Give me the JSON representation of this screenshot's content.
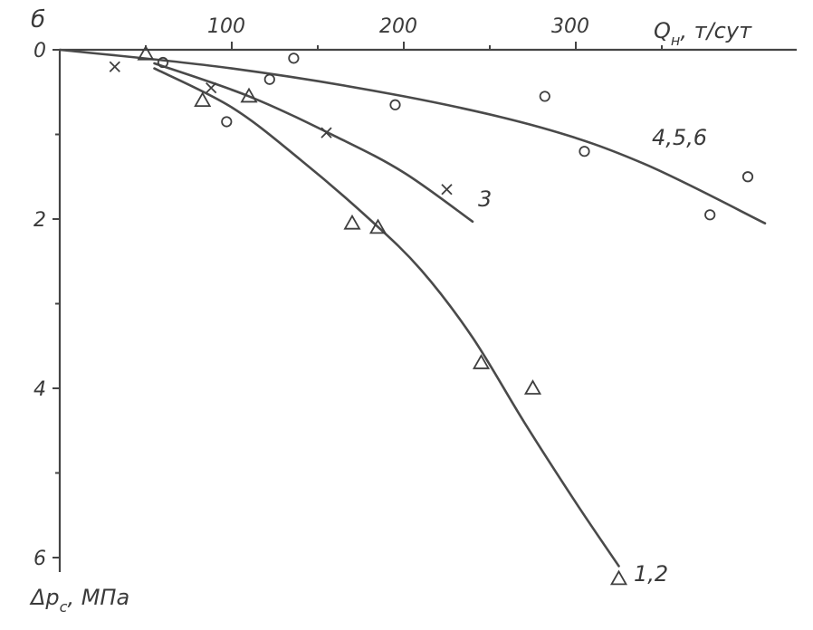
{
  "panel_label": "б",
  "chart_data": {
    "type": "scatter",
    "x_axis": {
      "label_main": "Q",
      "label_sub": "н",
      "label_unit": ", т/сут",
      "range": [
        0,
        440
      ],
      "position": "top",
      "major_ticks": [
        100,
        200,
        300
      ],
      "minor_ticks": [
        50,
        150,
        250,
        350
      ],
      "tick_labels": [
        "100",
        "200",
        "300"
      ]
    },
    "y_axis": {
      "label_main": "Δp",
      "label_sub": "с",
      "label_unit": ", МПа",
      "range": [
        0,
        6.3
      ],
      "inverted": true,
      "major_ticks": [
        0,
        2,
        4,
        6
      ],
      "minor_ticks": [
        1,
        3,
        5
      ],
      "tick_labels": [
        "0",
        "2",
        "4",
        "6"
      ]
    },
    "grid": false,
    "series": [
      {
        "name": "1,2",
        "marker": "triangle",
        "points": [
          [
            50,
            0.05
          ],
          [
            83,
            0.6
          ],
          [
            110,
            0.55
          ],
          [
            170,
            2.05
          ],
          [
            185,
            2.1
          ],
          [
            245,
            3.7
          ],
          [
            275,
            4.0
          ],
          [
            325,
            6.25
          ]
        ],
        "curve": [
          [
            55,
            0.22
          ],
          [
            100,
            0.68
          ],
          [
            140,
            1.3
          ],
          [
            180,
            2.0
          ],
          [
            210,
            2.6
          ],
          [
            240,
            3.4
          ],
          [
            270,
            4.4
          ],
          [
            300,
            5.35
          ],
          [
            325,
            6.1
          ]
        ]
      },
      {
        "name": "3",
        "marker": "cross",
        "points": [
          [
            32,
            0.2
          ],
          [
            88,
            0.45
          ],
          [
            155,
            0.98
          ],
          [
            225,
            1.65
          ]
        ],
        "curve": [
          [
            55,
            0.16
          ],
          [
            110,
            0.55
          ],
          [
            160,
            1.02
          ],
          [
            200,
            1.45
          ],
          [
            240,
            2.03
          ]
        ]
      },
      {
        "name": "4,5,6",
        "marker": "circle",
        "points": [
          [
            60,
            0.15
          ],
          [
            97,
            0.85
          ],
          [
            122,
            0.35
          ],
          [
            136,
            0.1
          ],
          [
            195,
            0.65
          ],
          [
            282,
            0.55
          ],
          [
            305,
            1.2
          ],
          [
            378,
            1.95
          ],
          [
            400,
            1.5
          ]
        ],
        "curve": [
          [
            0,
            0.0
          ],
          [
            100,
            0.22
          ],
          [
            200,
            0.55
          ],
          [
            280,
            0.92
          ],
          [
            340,
            1.35
          ],
          [
            410,
            2.05
          ]
        ]
      }
    ],
    "annotations": [
      "1,2",
      "3",
      "4,5,6"
    ]
  }
}
